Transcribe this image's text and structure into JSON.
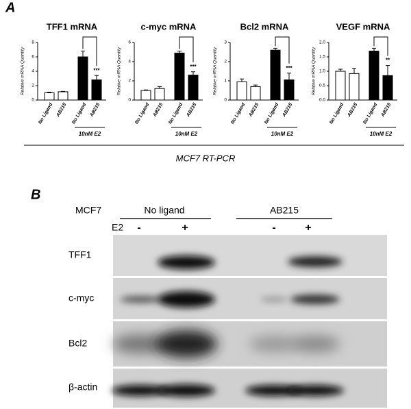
{
  "panel_a": {
    "label": "A",
    "footer": "MCF7 RT-PCR"
  },
  "chart_data": [
    {
      "type": "bar",
      "title": "TFF1 mRNA",
      "y_label": "Relative mRNA Quantity",
      "categories": [
        "No Ligand",
        "AB215",
        "No Ligand",
        "AB215"
      ],
      "values": [
        1.0,
        1.15,
        6.0,
        2.8
      ],
      "errors": [
        0.1,
        0.05,
        0.8,
        0.6
      ],
      "colors": [
        "#ffffff",
        "#ffffff",
        "#000000",
        "#000000"
      ],
      "ylim": [
        0,
        8
      ],
      "yticks": [
        0,
        2,
        4,
        6,
        8
      ],
      "significance": "***",
      "group_label": "10nM E2"
    },
    {
      "type": "bar",
      "title": "c-myc mRNA",
      "y_label": "Relative mRNA Quantity",
      "categories": [
        "No Ligand",
        "AB215",
        "No Ligand",
        "AB215"
      ],
      "values": [
        1.0,
        1.2,
        4.9,
        2.6
      ],
      "errors": [
        0.05,
        0.2,
        0.2,
        0.35
      ],
      "colors": [
        "#ffffff",
        "#ffffff",
        "#000000",
        "#000000"
      ],
      "ylim": [
        0,
        6
      ],
      "yticks": [
        0,
        2,
        4,
        6
      ],
      "significance": "***",
      "group_label": "10nM E2"
    },
    {
      "type": "bar",
      "title": "Bcl2 mRNA",
      "y_label": "Relative mRNA Quantity",
      "categories": [
        "No Ligand",
        "AB215",
        "No Ligand",
        "AB215"
      ],
      "values": [
        0.95,
        0.7,
        2.6,
        1.05
      ],
      "errors": [
        0.15,
        0.08,
        0.1,
        0.35
      ],
      "colors": [
        "#ffffff",
        "#ffffff",
        "#000000",
        "#000000"
      ],
      "ylim": [
        0,
        3
      ],
      "yticks": [
        0,
        1,
        2,
        3
      ],
      "significance": "***",
      "group_label": "10nM E2"
    },
    {
      "type": "bar",
      "title": "VEGF mRNA",
      "y_label": "Relative mRNA Quantity",
      "categories": [
        "No Ligand",
        "AB215",
        "No Ligand",
        "AB215"
      ],
      "values": [
        1.0,
        0.92,
        1.7,
        0.85
      ],
      "errors": [
        0.07,
        0.18,
        0.1,
        0.35
      ],
      "colors": [
        "#ffffff",
        "#ffffff",
        "#000000",
        "#000000"
      ],
      "ylim": [
        0,
        2
      ],
      "yticks": [
        {
          "value": 0,
          "label": "0.0"
        },
        0.5,
        {
          "value": 1,
          "label": "1.0"
        },
        1.5,
        {
          "value": 2,
          "label": "2.0"
        }
      ],
      "significance": "**",
      "group_label": "10nM E2"
    }
  ],
  "panel_b": {
    "label": "B",
    "cell_line": "MCF7",
    "groups": [
      "No ligand",
      "AB215"
    ],
    "treatment": "E2",
    "lanes": [
      "-",
      "+",
      "-",
      "+"
    ],
    "rows": [
      "TFF1",
      "c-myc",
      "Bcl2",
      "β-actin"
    ]
  }
}
